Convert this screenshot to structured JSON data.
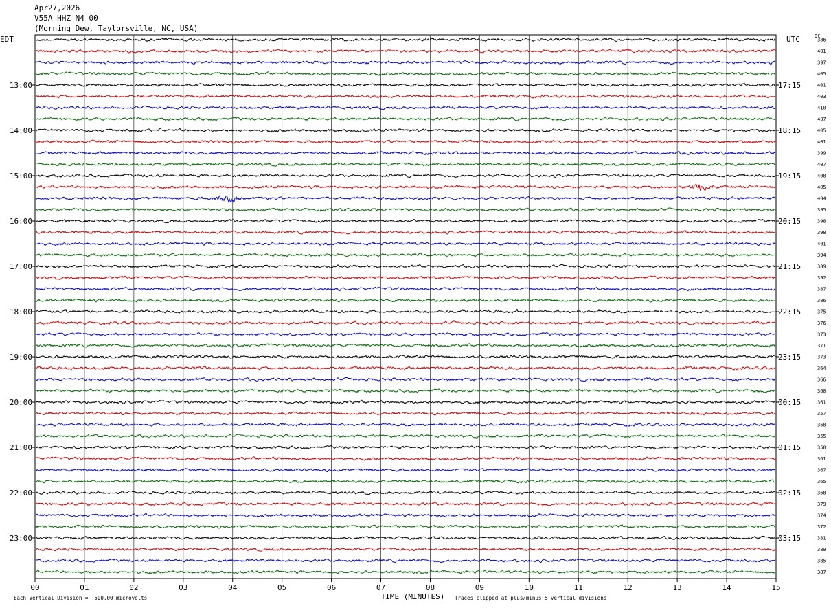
{
  "header": {
    "date": "Apr27,2026",
    "station": "V55A HHZ N4 00",
    "location": "(Morning Dew, Taylorsville, NC, USA)"
  },
  "axes": {
    "left_timezone": "EDT",
    "right_timezone": "UTC",
    "dc_label": "DC",
    "x_label": "TIME (MINUTES)"
  },
  "footer": {
    "scale_note": "Each Vertical Division =  500.00 microvolts",
    "clip_note": "Traces clipped at plus/minus 5 vertical divisions"
  },
  "chart_data": {
    "type": "line",
    "title": "",
    "x_ticks": [
      "00",
      "01",
      "02",
      "03",
      "04",
      "05",
      "06",
      "07",
      "08",
      "09",
      "10",
      "11",
      "12",
      "13",
      "14",
      "15"
    ],
    "x_range": [
      0,
      15
    ],
    "grid": true,
    "trace_colors": [
      "#000000",
      "#cc0000",
      "#0000cc",
      "#006600"
    ],
    "hour_labels_left": [
      "13:00",
      "14:00",
      "15:00",
      "16:00",
      "17:00",
      "18:00",
      "19:00",
      "20:00",
      "21:00",
      "22:00",
      "23:00"
    ],
    "hour_labels_right": [
      "17:15",
      "18:15",
      "19:15",
      "20:15",
      "21:15",
      "22:15",
      "23:15",
      "00:15",
      "01:15",
      "02:15",
      "03:15"
    ],
    "dc_values": [
      "386",
      "401",
      "397",
      "405",
      "401",
      "403",
      "410",
      "407",
      "405",
      "401",
      "399",
      "407",
      "408",
      "405",
      "404",
      "395",
      "398",
      "398",
      "401",
      "394",
      "389",
      "392",
      "387",
      "386",
      "375",
      "376",
      "373",
      "371",
      "373",
      "364",
      "366",
      "360",
      "361",
      "357",
      "358",
      "355",
      "358",
      "361",
      "367",
      "365",
      "368",
      "379",
      "374",
      "372",
      "381",
      "389",
      "385",
      "387"
    ],
    "events": [
      {
        "trace": 13,
        "minute": 13.5
      },
      {
        "trace": 14,
        "minute": 3.9
      }
    ]
  }
}
